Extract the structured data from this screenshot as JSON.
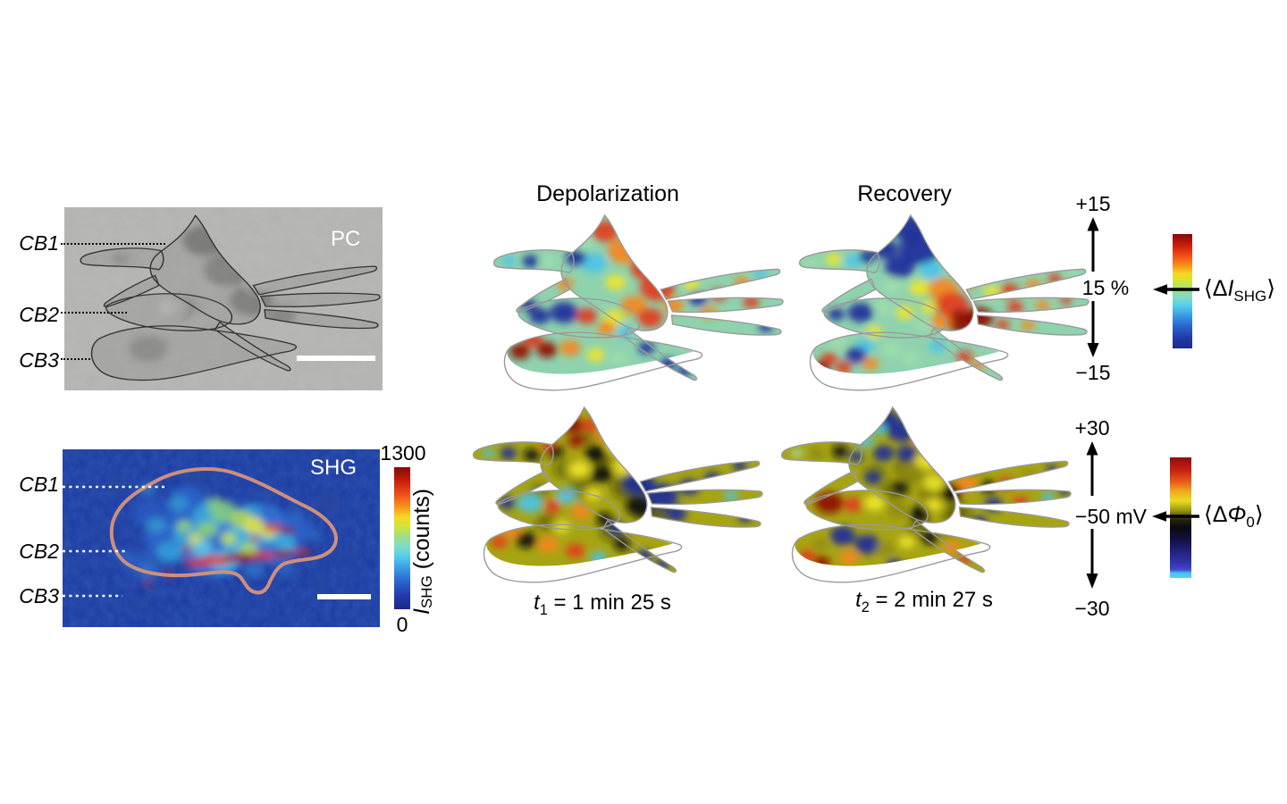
{
  "figure": {
    "left": {
      "pc": {
        "label": "PC",
        "markers": [
          "CB1",
          "CB2",
          "CB3"
        ]
      },
      "shg": {
        "label": "SHG",
        "markers": [
          "CB1",
          "CB2",
          "CB3"
        ],
        "colorbar": {
          "max": "1300",
          "min": "0",
          "var": "I",
          "var_sub": "SHG",
          "units": " (counts)"
        }
      }
    },
    "columns": [
      "Depolarization",
      "Recovery"
    ],
    "captions": [
      {
        "var": "t",
        "sub": "1",
        "rest": " = 1 min 25 s"
      },
      {
        "var": "t",
        "sub": "2",
        "rest": " = 2 min 27 s"
      }
    ],
    "scales": {
      "shg_change": {
        "top": "+15",
        "mid": "15 %",
        "bottom": "−15",
        "legend": {
          "open": "⟨Δ",
          "var": "I",
          "sub": "SHG",
          "close": "⟩"
        }
      },
      "potential": {
        "top": "+30",
        "mid": "−50 mV",
        "bottom": "−30",
        "legend": {
          "open": "⟨Δ",
          "var": "Φ",
          "sub": "0",
          "close": "⟩"
        }
      }
    },
    "colorbars": {
      "counts": {
        "range": [
          0,
          1300
        ],
        "type": "jet"
      },
      "shg_change_pct": {
        "range": [
          -15,
          15
        ],
        "span": "15 %",
        "type": "jet"
      },
      "potential_mv": {
        "range": [
          -30,
          30
        ],
        "reference": "−50 mV",
        "type": "red-yellow-black-blue-cyan"
      }
    },
    "palette": {
      "jet_high": "#7f0b0b",
      "jet_low": "#1e2a86",
      "shg_background": "#1c3aa2",
      "shg_cell_outline": "#cf8f7d",
      "map_outline_gray": "#9a9a9a",
      "pc_outline": "#353535"
    }
  }
}
